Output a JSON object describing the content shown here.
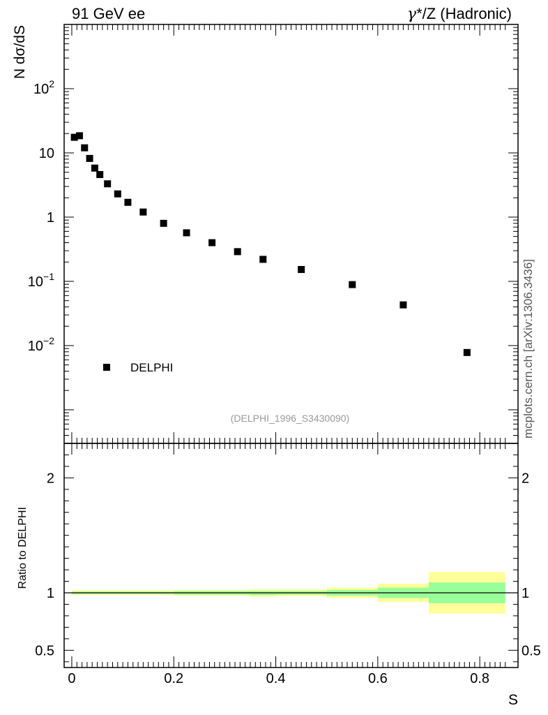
{
  "header": {
    "left": "91 GeV ee",
    "right_gamma": "γ",
    "right_rest": "*/Z (Hadronic)"
  },
  "side_label": "mcplots.cern.ch [arXiv:1306.3436]",
  "chart_data": [
    {
      "type": "scatter",
      "ylabel": "N dσ/dS",
      "yscale": "log",
      "ylim": [
        0.0003,
        1000
      ],
      "xlim": [
        -0.015,
        0.875
      ],
      "ytick_labels": [
        "10^-2",
        "10^-1",
        "1",
        "10",
        "10^2"
      ],
      "legend": {
        "label": "DELPHI",
        "position": "bottom-left"
      },
      "annotation": "(DELPHI_1996_S3430090)",
      "series": [
        {
          "name": "DELPHI",
          "x": [
            0.005,
            0.015,
            0.025,
            0.035,
            0.045,
            0.055,
            0.07,
            0.09,
            0.11,
            0.14,
            0.18,
            0.225,
            0.275,
            0.325,
            0.375,
            0.45,
            0.55,
            0.65,
            0.775
          ],
          "y": [
            17.5,
            18.5,
            12.0,
            8.2,
            5.8,
            4.6,
            3.3,
            2.3,
            1.7,
            1.2,
            0.8,
            0.57,
            0.4,
            0.29,
            0.22,
            0.153,
            0.089,
            0.043,
            0.0078
          ]
        }
      ]
    },
    {
      "type": "area",
      "ylabel": "Ratio to DELPHI",
      "xlabel": "S",
      "ylim": [
        0.35,
        2.3
      ],
      "xlim": [
        -0.015,
        0.875
      ],
      "xtick_labels": [
        "0",
        "0.2",
        "0.4",
        "0.6",
        "0.8"
      ],
      "ytick_labels": [
        "0.5",
        "1",
        "2"
      ],
      "reference_line": 1.0,
      "band_colors": {
        "inner": "#99ff99",
        "outer": "#ffff99"
      },
      "bins": [
        {
          "x0": 0.0,
          "x1": 0.1,
          "inner": [
            0.99,
            1.01
          ],
          "outer": [
            0.98,
            1.02
          ]
        },
        {
          "x0": 0.1,
          "x1": 0.2,
          "inner": [
            0.99,
            1.01
          ],
          "outer": [
            0.98,
            1.02
          ]
        },
        {
          "x0": 0.2,
          "x1": 0.3,
          "inner": [
            0.985,
            1.015
          ],
          "outer": [
            0.975,
            1.025
          ]
        },
        {
          "x0": 0.3,
          "x1": 0.35,
          "inner": [
            0.985,
            1.015
          ],
          "outer": [
            0.975,
            1.025
          ]
        },
        {
          "x0": 0.35,
          "x1": 0.4,
          "inner": [
            0.98,
            1.015
          ],
          "outer": [
            0.965,
            1.03
          ]
        },
        {
          "x0": 0.4,
          "x1": 0.5,
          "inner": [
            0.985,
            1.015
          ],
          "outer": [
            0.97,
            1.03
          ]
        },
        {
          "x0": 0.5,
          "x1": 0.6,
          "inner": [
            0.975,
            1.025
          ],
          "outer": [
            0.955,
            1.045
          ]
        },
        {
          "x0": 0.6,
          "x1": 0.7,
          "inner": [
            0.955,
            1.045
          ],
          "outer": [
            0.92,
            1.08
          ]
        },
        {
          "x0": 0.7,
          "x1": 0.85,
          "inner": [
            0.91,
            1.09
          ],
          "outer": [
            0.82,
            1.18
          ]
        }
      ]
    }
  ]
}
